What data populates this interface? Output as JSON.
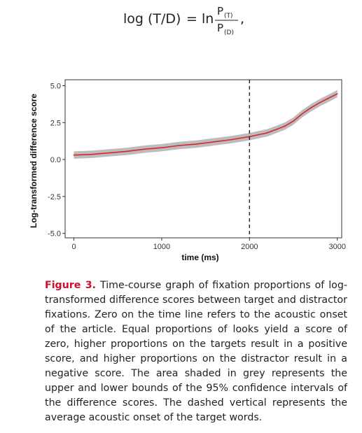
{
  "equation": {
    "lhs": "log (T/D)",
    "equals": "=",
    "ln": "ln",
    "numerator": "P",
    "numerator_sub": "(T)",
    "denominator": "P",
    "denominator_sub": "(D)",
    "trailing": ","
  },
  "chart_data": {
    "type": "line",
    "xlabel": "time (ms)",
    "ylabel": "Log-transformed difference score",
    "xlim": [
      -100,
      3050
    ],
    "ylim": [
      -5.3,
      5.4
    ],
    "x_ticks": [
      0,
      1000,
      2000,
      3000
    ],
    "x_tick_labels": [
      "0",
      "1000",
      "2000",
      "3000"
    ],
    "y_ticks": [
      -5.0,
      -2.5,
      0.0,
      2.5,
      5.0
    ],
    "y_tick_labels": [
      "-5.0",
      "-2.5",
      "0.0",
      "2.5",
      "5.0"
    ],
    "grid": false,
    "vertical_reference_line": {
      "x": 2000,
      "style": "dashed"
    },
    "series": [
      {
        "color": "#d62728",
        "band_color": "#b5b5b5",
        "x": [
          0,
          200,
          400,
          600,
          800,
          1000,
          1200,
          1400,
          1600,
          1800,
          2000,
          2200,
          2400,
          2500,
          2600,
          2700,
          2800,
          2900,
          3000
        ],
        "y": [
          0.3,
          0.35,
          0.45,
          0.55,
          0.7,
          0.8,
          0.95,
          1.05,
          1.2,
          1.35,
          1.55,
          1.8,
          2.25,
          2.6,
          3.1,
          3.5,
          3.85,
          4.15,
          4.45
        ],
        "lower": [
          0.05,
          0.1,
          0.2,
          0.3,
          0.45,
          0.55,
          0.7,
          0.8,
          0.95,
          1.1,
          1.3,
          1.55,
          2.0,
          2.35,
          2.85,
          3.25,
          3.6,
          3.9,
          4.2
        ],
        "upper": [
          0.55,
          0.6,
          0.7,
          0.8,
          0.95,
          1.05,
          1.2,
          1.3,
          1.45,
          1.6,
          1.8,
          2.05,
          2.5,
          2.85,
          3.35,
          3.75,
          4.1,
          4.4,
          4.7
        ]
      }
    ]
  },
  "caption": {
    "label": "Figure 3.",
    "text": " Time-course graph of fixation proportions of log-transformed difference scores between target and distractor fixations. Zero on the time line refers to the acoustic onset of the article. Equal proportions of looks yield a score of zero, higher proportions on the targets result in a positive score, and higher proportions on the distractor result in a negative score. The area shaded in grey represents the upper and lower bounds of the 95% confidence intervals of the difference scores. The dashed vertical represents the average acoustic onset of the target words."
  }
}
